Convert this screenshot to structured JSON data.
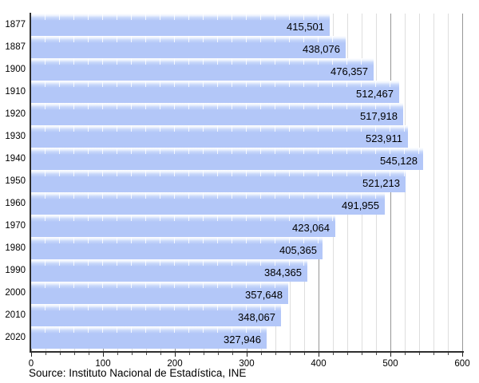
{
  "chart_data": {
    "type": "bar",
    "orientation": "horizontal",
    "title": "",
    "xlabel": "",
    "ylabel": "",
    "categories": [
      "1877",
      "1887",
      "1900",
      "1910",
      "1920",
      "1930",
      "1940",
      "1950",
      "1960",
      "1970",
      "1980",
      "1990",
      "2000",
      "2010",
      "2020"
    ],
    "values": [
      415501,
      438076,
      476357,
      512467,
      517918,
      523911,
      545128,
      521213,
      491955,
      423064,
      405365,
      384365,
      357648,
      348067,
      327946
    ],
    "value_labels": [
      "415,501",
      "438,076",
      "476,357",
      "512,467",
      "517,918",
      "523,911",
      "545,128",
      "521,213",
      "491,955",
      "423,064",
      "405,365",
      "384,365",
      "357,648",
      "348,067",
      "327,946"
    ],
    "xlim": [
      0,
      600
    ],
    "x_ticks": [
      0,
      100,
      200,
      300,
      400,
      500,
      600
    ],
    "x_tick_labels": [
      "0",
      "100",
      "200",
      "300",
      "400",
      "500",
      "600"
    ],
    "x_minor_step": 20,
    "grid": true,
    "legend_position": "none",
    "bar_color": "#b3c7f8",
    "gridline_minor_color": "#dedede",
    "gridline_major_color": "#979797",
    "axis_color": "#2e2e2e",
    "source": "Source: Instituto Nacional de Estadística, INE"
  }
}
